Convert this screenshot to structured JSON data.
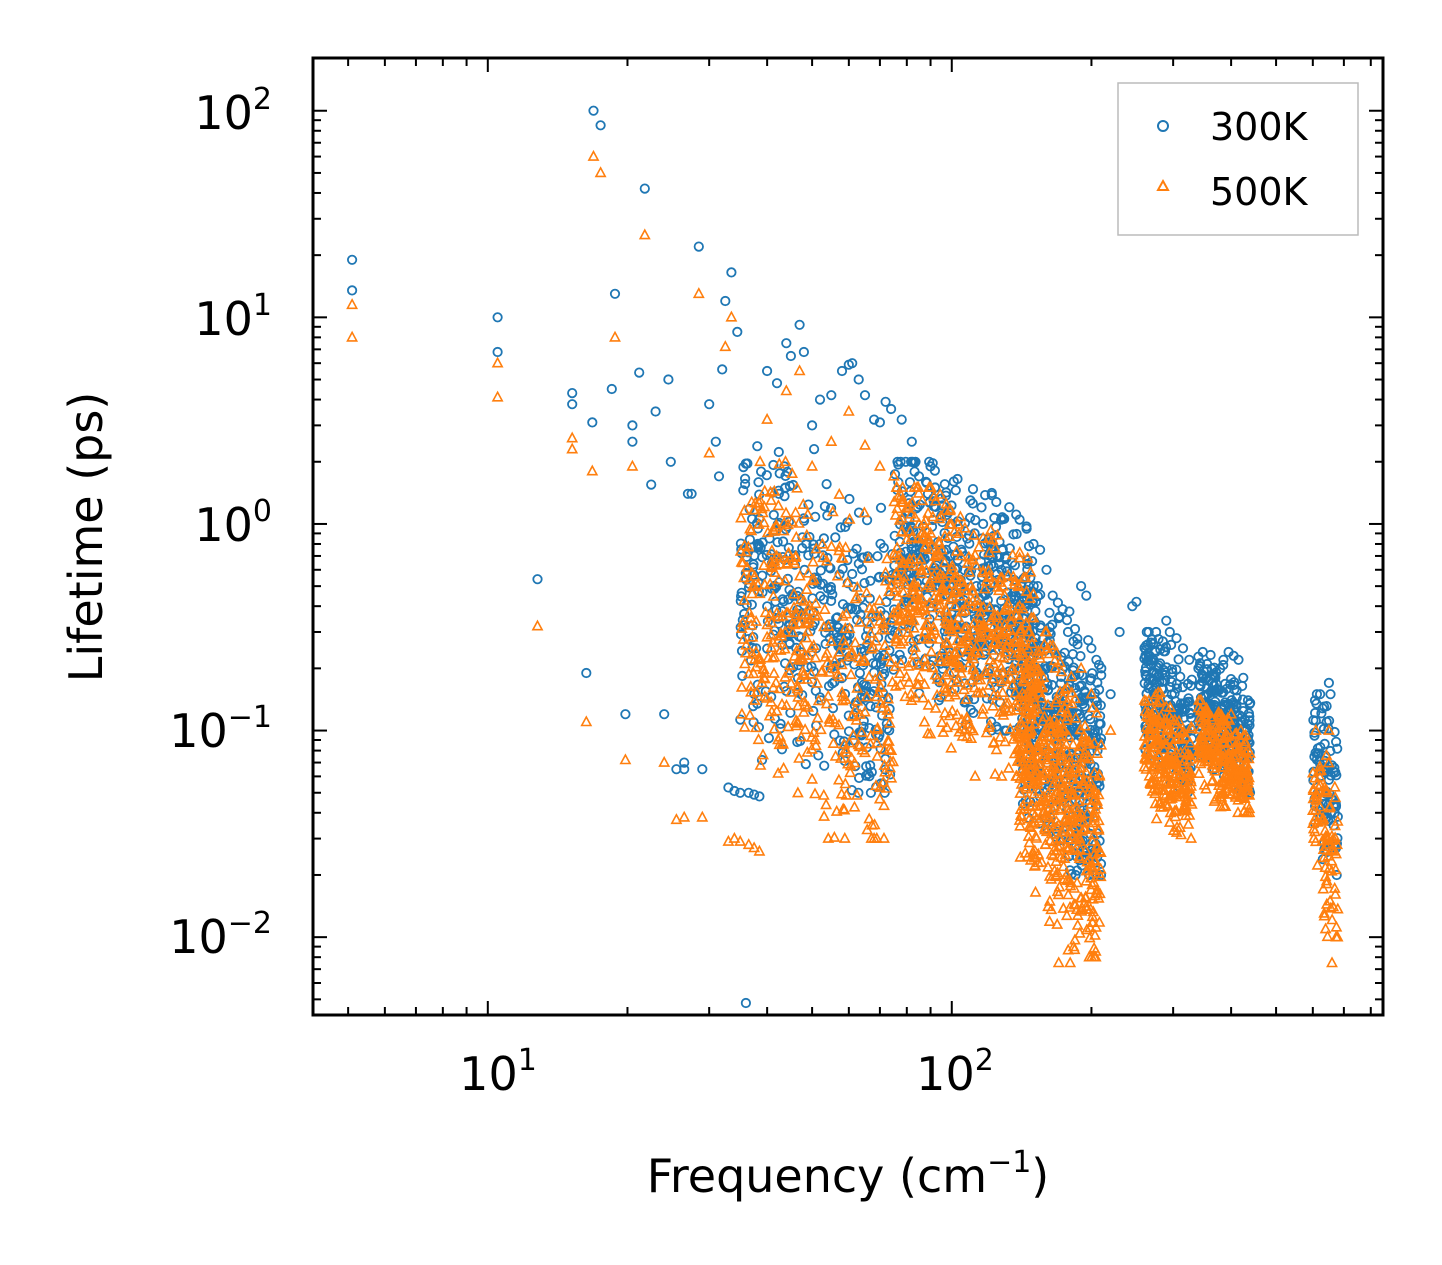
{
  "chart_data": {
    "type": "scatter",
    "title": "",
    "xlabel": "Frequency (cm",
    "xlabel_sup": "−1",
    "xlabel_end": ")",
    "ylabel": "Lifetime (ps)",
    "xscale": "log",
    "yscale": "log",
    "xlim": [
      4.2,
      850
    ],
    "ylim": [
      0.0042,
      180
    ],
    "xticks": [
      {
        "value": 10,
        "base": "10",
        "exp": "1"
      },
      {
        "value": 100,
        "base": "10",
        "exp": "2"
      }
    ],
    "yticks": [
      {
        "value": 0.01,
        "base": "10",
        "exp": "−2"
      },
      {
        "value": 0.1,
        "base": "10",
        "exp": "−1"
      },
      {
        "value": 1,
        "base": "10",
        "exp": "0"
      },
      {
        "value": 10,
        "base": "10",
        "exp": "1"
      },
      {
        "value": 100,
        "base": "10",
        "exp": "2"
      }
    ],
    "legend_position": "top-right",
    "series": [
      {
        "name": "300K",
        "marker": "circle",
        "color": "#1f77b4",
        "points": [
          [
            5.1,
            19
          ],
          [
            5.1,
            13.5
          ],
          [
            10.5,
            10
          ],
          [
            10.5,
            6.8
          ],
          [
            12.8,
            0.54
          ],
          [
            15.2,
            4.3
          ],
          [
            15.2,
            3.8
          ],
          [
            16.3,
            0.19
          ],
          [
            16.8,
            3.1
          ],
          [
            16.9,
            100
          ],
          [
            17.5,
            85
          ],
          [
            18.5,
            4.5
          ],
          [
            18.8,
            13
          ],
          [
            19.8,
            0.12
          ],
          [
            20.5,
            2.5
          ],
          [
            20.5,
            3.0
          ],
          [
            21.2,
            5.4
          ],
          [
            21.8,
            42
          ],
          [
            22.5,
            1.55
          ],
          [
            23,
            3.5
          ],
          [
            24,
            0.12
          ],
          [
            24.5,
            5.0
          ],
          [
            24.8,
            2.0
          ],
          [
            25.5,
            0.065
          ],
          [
            26.5,
            0.065
          ],
          [
            26.5,
            0.07
          ],
          [
            27,
            1.4
          ],
          [
            27.5,
            1.4
          ],
          [
            28.5,
            22
          ],
          [
            29,
            0.065
          ],
          [
            30,
            3.8
          ],
          [
            31,
            2.5
          ],
          [
            31.5,
            1.7
          ],
          [
            32,
            5.6
          ],
          [
            32.5,
            12
          ],
          [
            33,
            0.053
          ],
          [
            33.5,
            16.5
          ],
          [
            34,
            0.051
          ],
          [
            34.5,
            8.5
          ],
          [
            35,
            0.05
          ],
          [
            36,
            0.0048
          ],
          [
            36.5,
            0.05
          ],
          [
            37.5,
            0.049
          ],
          [
            38.5,
            0.048
          ],
          [
            39,
            0.072
          ],
          [
            40,
            5.5
          ],
          [
            42,
            4.8
          ],
          [
            44,
            7.5
          ],
          [
            45,
            6.5
          ],
          [
            47,
            9.2
          ],
          [
            48,
            6.8
          ],
          [
            50,
            3.0
          ],
          [
            52,
            4.0
          ],
          [
            55,
            4.2
          ],
          [
            58,
            5.5
          ],
          [
            60,
            5.9
          ],
          [
            61,
            6.0
          ],
          [
            63,
            5.0
          ],
          [
            65,
            4.2
          ],
          [
            68,
            3.2
          ],
          [
            70,
            3.1
          ],
          [
            72,
            3.9
          ],
          [
            74,
            3.6
          ],
          [
            78,
            3.2
          ],
          [
            82,
            2.5
          ],
          [
            85,
            1.7
          ],
          [
            88,
            1.6
          ],
          [
            90,
            1.9
          ],
          [
            92,
            1.5
          ],
          [
            95,
            1.1
          ],
          [
            100,
            1.0
          ],
          [
            104,
            0.95
          ],
          [
            108,
            0.85
          ],
          [
            112,
            0.9
          ],
          [
            118,
            1.38
          ],
          [
            122,
            1.38
          ],
          [
            128,
            0.6
          ],
          [
            135,
            0.65
          ],
          [
            140,
            1.05
          ],
          [
            145,
            0.95
          ],
          [
            150,
            0.8
          ],
          [
            155,
            0.75
          ],
          [
            160,
            0.6
          ],
          [
            165,
            0.45
          ],
          [
            170,
            0.35
          ],
          [
            178,
            0.3
          ],
          [
            183,
            0.27
          ],
          [
            190,
            0.5
          ],
          [
            195,
            0.45
          ],
          [
            200,
            0.25
          ],
          [
            205,
            0.22
          ],
          [
            210,
            0.2
          ],
          [
            220,
            0.15
          ],
          [
            230,
            0.3
          ],
          [
            245,
            0.4
          ],
          [
            250,
            0.42
          ],
          [
            265,
            0.22
          ],
          [
            275,
            0.24
          ],
          [
            285,
            0.27
          ],
          [
            290,
            0.34
          ],
          [
            295,
            0.3
          ],
          [
            305,
            0.28
          ],
          [
            315,
            0.25
          ],
          [
            325,
            0.22
          ],
          [
            340,
            0.2
          ],
          [
            355,
            0.16
          ],
          [
            370,
            0.18
          ],
          [
            385,
            0.22
          ],
          [
            395,
            0.24
          ],
          [
            405,
            0.23
          ],
          [
            415,
            0.22
          ],
          [
            425,
            0.18
          ],
          [
            435,
            0.14
          ],
          [
            650,
            0.17
          ],
          [
            655,
            0.15
          ]
        ],
        "clusters": [
          {
            "x": [
              35,
              75
            ],
            "y": [
              0.05,
              2.5
            ],
            "n": 420
          },
          {
            "x": [
              75,
              150
            ],
            "y": [
              0.1,
              2.0
            ],
            "n": 520
          },
          {
            "x": [
              140,
              210
            ],
            "y": [
              0.02,
              0.5
            ],
            "n": 460
          },
          {
            "x": [
              260,
              330
            ],
            "y": [
              0.05,
              0.3
            ],
            "n": 240
          },
          {
            "x": [
              340,
              440
            ],
            "y": [
              0.05,
              0.24
            ],
            "n": 260
          },
          {
            "x": [
              600,
              680
            ],
            "y": [
              0.02,
              0.15
            ],
            "n": 90
          }
        ]
      },
      {
        "name": "500K",
        "marker": "triangle",
        "color": "#ff7f0e",
        "points": [
          [
            5.1,
            11.5
          ],
          [
            5.1,
            8
          ],
          [
            10.5,
            6
          ],
          [
            10.5,
            4.1
          ],
          [
            12.8,
            0.32
          ],
          [
            15.2,
            2.6
          ],
          [
            15.2,
            2.3
          ],
          [
            16.3,
            0.11
          ],
          [
            16.8,
            1.8
          ],
          [
            16.9,
            60
          ],
          [
            17.5,
            50
          ],
          [
            18.8,
            8
          ],
          [
            19.8,
            0.072
          ],
          [
            20.5,
            1.9
          ],
          [
            21.8,
            25
          ],
          [
            24,
            0.07
          ],
          [
            25.5,
            0.037
          ],
          [
            26.5,
            0.038
          ],
          [
            28.5,
            13
          ],
          [
            29,
            0.038
          ],
          [
            30,
            2.2
          ],
          [
            32.5,
            7.2
          ],
          [
            33,
            0.029
          ],
          [
            33.5,
            10
          ],
          [
            34,
            0.03
          ],
          [
            35,
            0.029
          ],
          [
            36.5,
            0.028
          ],
          [
            37.5,
            0.027
          ],
          [
            38.5,
            0.026
          ],
          [
            40,
            3.2
          ],
          [
            44,
            4.4
          ],
          [
            47,
            5.5
          ],
          [
            50,
            1.9
          ],
          [
            55,
            2.5
          ],
          [
            60,
            3.5
          ],
          [
            65,
            2.4
          ],
          [
            70,
            1.9
          ],
          [
            75,
            1.7
          ],
          [
            80,
            1.2
          ],
          [
            85,
            1.0
          ],
          [
            90,
            0.9
          ],
          [
            100,
            0.6
          ],
          [
            110,
            0.5
          ],
          [
            120,
            0.55
          ],
          [
            130,
            0.45
          ],
          [
            140,
            0.4
          ],
          [
            150,
            0.35
          ],
          [
            160,
            0.3
          ],
          [
            170,
            0.0075
          ],
          [
            180,
            0.0075
          ],
          [
            190,
            0.2
          ],
          [
            200,
            0.15
          ],
          [
            220,
            0.1
          ],
          [
            270,
            0.12
          ],
          [
            290,
            0.13
          ],
          [
            310,
            0.1
          ],
          [
            400,
            0.12
          ],
          [
            420,
            0.1
          ],
          [
            650,
            0.1
          ],
          [
            660,
            0.0075
          ]
        ],
        "clusters": [
          {
            "x": [
              35,
              75
            ],
            "y": [
              0.03,
              2.0
            ],
            "n": 420
          },
          {
            "x": [
              75,
              150
            ],
            "y": [
              0.06,
              1.5
            ],
            "n": 560
          },
          {
            "x": [
              140,
              210
            ],
            "y": [
              0.008,
              0.3
            ],
            "n": 520
          },
          {
            "x": [
              260,
              330
            ],
            "y": [
              0.03,
              0.16
            ],
            "n": 240
          },
          {
            "x": [
              340,
              440
            ],
            "y": [
              0.04,
              0.14
            ],
            "n": 240
          },
          {
            "x": [
              600,
              680
            ],
            "y": [
              0.01,
              0.1
            ],
            "n": 90
          }
        ]
      }
    ]
  }
}
